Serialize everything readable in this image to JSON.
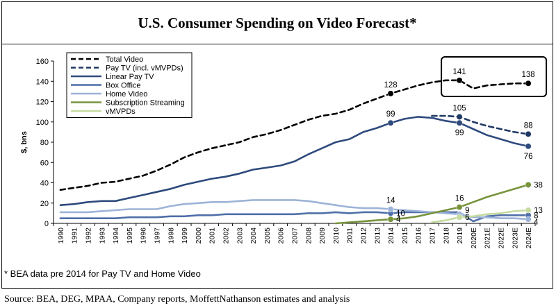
{
  "title": "U.S. Consumer Spending on Video Forecast*",
  "footnote": "* BEA data pre 2014 for Pay TV and Home Video",
  "source": "Source: BEA, DEG, MPAA, Company reports, MoffettNathanson estimates and analysis",
  "chart_data": {
    "type": "line",
    "ylabel": "$, bns",
    "ylim": [
      0,
      160
    ],
    "yticks": [
      0,
      20,
      40,
      60,
      80,
      100,
      120,
      140,
      160
    ],
    "legend_position": "top-left",
    "categories": [
      "1990",
      "1991",
      "1992",
      "1993",
      "1994",
      "1995",
      "1996",
      "1997",
      "1998",
      "1999",
      "2000",
      "2001",
      "2002",
      "2003",
      "2004",
      "2005",
      "2006",
      "2007",
      "2008",
      "2009",
      "2010",
      "2011",
      "2012",
      "2013",
      "2014",
      "2015",
      "2016",
      "2017",
      "2018",
      "2019",
      "2020E",
      "2021E",
      "2022E",
      "2023E",
      "2024E"
    ],
    "series": [
      {
        "name": "Total Video",
        "color": "#000000",
        "dash": "dashed",
        "values": [
          33,
          35,
          37,
          40,
          41,
          44,
          47,
          52,
          58,
          65,
          70,
          74,
          77,
          80,
          85,
          88,
          92,
          97,
          102,
          106,
          108,
          112,
          118,
          123,
          128,
          132,
          136,
          139,
          141,
          141,
          133,
          136,
          137,
          138,
          138
        ]
      },
      {
        "name": "Pay TV (incl. vMVPDs)",
        "color": "#1f3864",
        "dash": "dashed",
        "values": [
          null,
          null,
          null,
          null,
          null,
          null,
          null,
          null,
          null,
          null,
          null,
          null,
          null,
          null,
          null,
          null,
          null,
          null,
          null,
          null,
          null,
          null,
          null,
          null,
          null,
          null,
          null,
          106,
          106,
          105,
          100,
          96,
          93,
          90,
          88
        ]
      },
      {
        "name": "Linear Pay TV",
        "color": "#2e4a7d",
        "dash": "solid",
        "values": [
          18,
          19,
          21,
          22,
          22,
          25,
          28,
          31,
          34,
          38,
          41,
          44,
          46,
          49,
          53,
          55,
          57,
          61,
          68,
          74,
          80,
          83,
          90,
          94,
          99,
          103,
          105,
          104,
          101,
          99,
          93,
          87,
          83,
          79,
          76
        ]
      },
      {
        "name": "Box Office",
        "color": "#4f6fa8",
        "dash": "solid",
        "values": [
          5,
          5,
          5,
          5,
          5,
          6,
          6,
          6,
          7,
          7,
          8,
          8,
          9,
          9,
          9,
          9,
          9,
          9,
          10,
          10,
          11,
          10,
          11,
          11,
          10,
          11,
          11,
          11,
          11,
          11,
          2,
          7,
          8,
          8,
          8
        ]
      },
      {
        "name": "Home Video",
        "color": "#9db3d8",
        "dash": "solid",
        "values": [
          11,
          11,
          11,
          12,
          13,
          14,
          14,
          14,
          17,
          19,
          20,
          21,
          21,
          22,
          23,
          23,
          23,
          23,
          22,
          20,
          18,
          16,
          15,
          15,
          14,
          13,
          12,
          11,
          10,
          9,
          6,
          6,
          5,
          5,
          4
        ]
      },
      {
        "name": "Subscription Streaming",
        "color": "#77933c",
        "dash": "solid",
        "values": [
          null,
          null,
          null,
          null,
          null,
          null,
          null,
          null,
          null,
          null,
          null,
          null,
          null,
          null,
          null,
          null,
          null,
          null,
          null,
          null,
          0,
          1,
          2,
          3,
          4,
          5,
          7,
          10,
          13,
          16,
          21,
          26,
          30,
          34,
          38
        ]
      },
      {
        "name": "vMVPDs",
        "color": "#c5dba0",
        "dash": "solid",
        "values": [
          null,
          null,
          null,
          null,
          null,
          null,
          null,
          null,
          null,
          null,
          null,
          null,
          null,
          null,
          null,
          null,
          null,
          null,
          null,
          null,
          null,
          null,
          null,
          null,
          null,
          null,
          null,
          1,
          3,
          6,
          7,
          9,
          10,
          12,
          13
        ]
      }
    ],
    "annotations": [
      {
        "text": "128",
        "series": 0,
        "x": "2014",
        "pos": "above"
      },
      {
        "text": "141",
        "series": 0,
        "x": "2019",
        "pos": "above"
      },
      {
        "text": "138",
        "series": 0,
        "x": "2024E",
        "pos": "above"
      },
      {
        "text": "105",
        "series": 1,
        "x": "2019",
        "pos": "above"
      },
      {
        "text": "88",
        "series": 1,
        "x": "2024E",
        "pos": "above"
      },
      {
        "text": "99",
        "series": 2,
        "x": "2014",
        "pos": "above"
      },
      {
        "text": "99",
        "series": 2,
        "x": "2019",
        "pos": "below"
      },
      {
        "text": "76",
        "series": 2,
        "x": "2024E",
        "pos": "below"
      },
      {
        "text": "14",
        "series": 4,
        "x": "2014",
        "pos": "above"
      },
      {
        "text": "10",
        "series": 3,
        "x": "2014",
        "pos": "right"
      },
      {
        "text": "4",
        "series": 5,
        "x": "2014",
        "pos": "right"
      },
      {
        "text": "16",
        "series": 5,
        "x": "2019",
        "pos": "above"
      },
      {
        "text": "9",
        "series": 4,
        "x": "2019",
        "pos": "right-up"
      },
      {
        "text": "6",
        "series": 6,
        "x": "2019",
        "pos": "right"
      },
      {
        "text": "38",
        "series": 5,
        "x": "2024E",
        "pos": "right"
      },
      {
        "text": "13",
        "series": 6,
        "x": "2024E",
        "pos": "right"
      },
      {
        "text": "8",
        "series": 3,
        "x": "2024E",
        "pos": "right"
      },
      {
        "text": "4",
        "series": 4,
        "x": "2024E",
        "pos": "right-down"
      }
    ],
    "markers": [
      {
        "series": 0,
        "x": [
          "2014",
          "2019",
          "2024E"
        ]
      },
      {
        "series": 1,
        "x": [
          "2019",
          "2024E"
        ]
      },
      {
        "series": 2,
        "x": [
          "2014",
          "2019",
          "2024E"
        ]
      },
      {
        "series": 3,
        "x": [
          "2014",
          "2024E"
        ]
      },
      {
        "series": 4,
        "x": [
          "2014",
          "2019",
          "2024E"
        ]
      },
      {
        "series": 5,
        "x": [
          "2014",
          "2019",
          "2024E"
        ]
      },
      {
        "series": 6,
        "x": [
          "2019",
          "2024E"
        ]
      }
    ],
    "highlight_box": {
      "from": "2019",
      "to": "2024E"
    }
  }
}
